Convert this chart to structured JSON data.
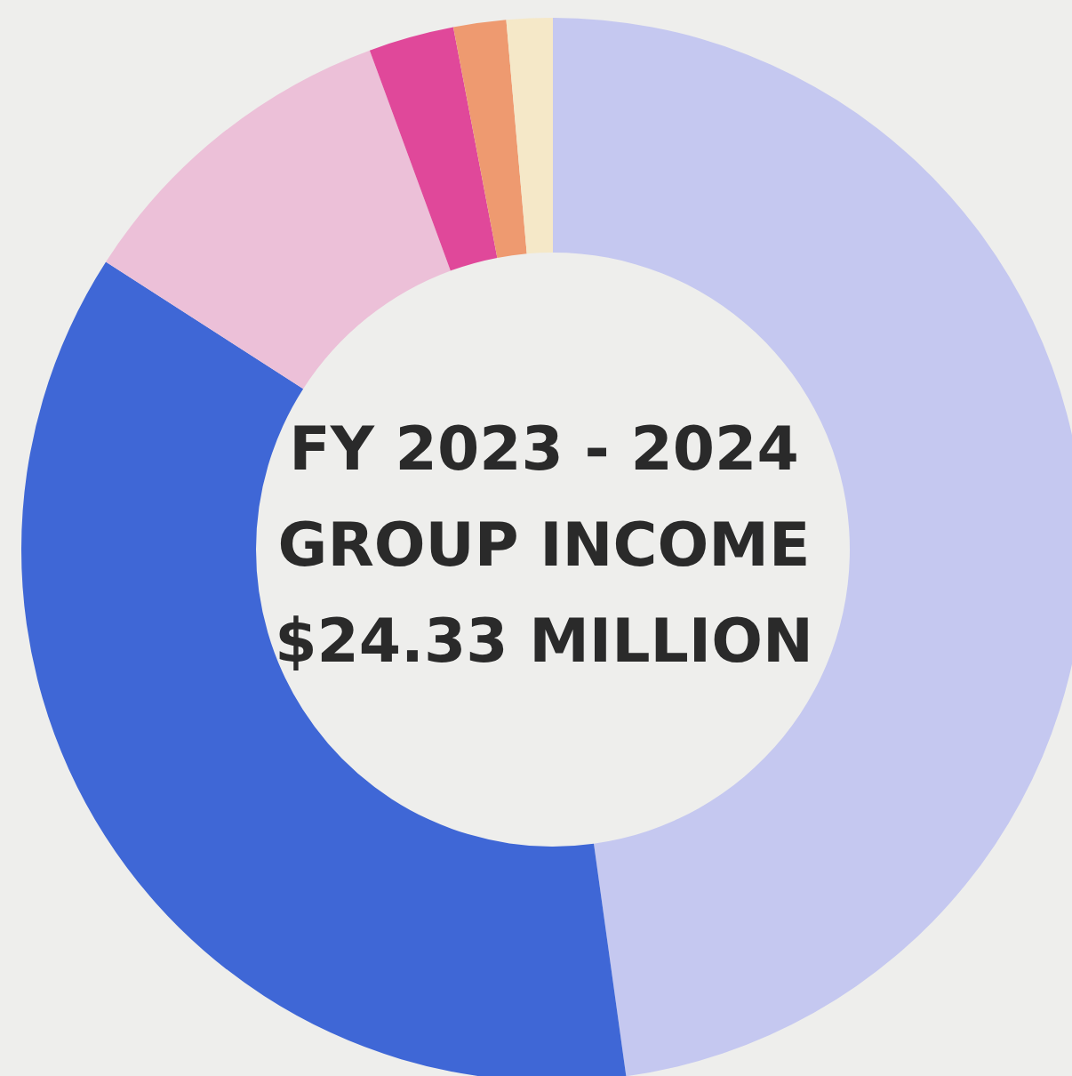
{
  "chart_data": {
    "type": "donut",
    "categories": [
      null,
      null,
      null,
      null,
      null,
      null
    ],
    "values": [
      47.8,
      36.3,
      10.3,
      2.6,
      1.6,
      1.4
    ],
    "colors": [
      "#c5c8f0",
      "#3f67d6",
      "#ecc0d8",
      "#e0489a",
      "#ee9a70",
      "#f5e8c8"
    ],
    "annotations": [
      "FY 2023 - 2024",
      "GROUP INCOME",
      "$24.33 MILLION"
    ]
  }
}
